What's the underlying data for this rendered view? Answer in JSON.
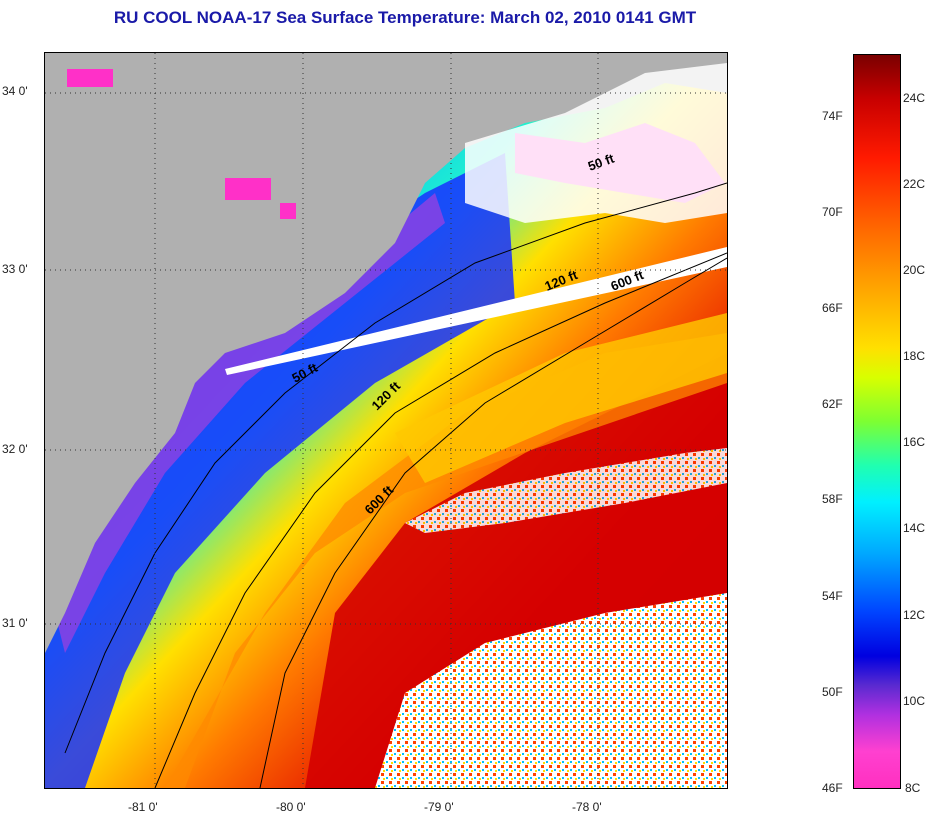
{
  "title": "RU COOL  NOAA-17  Sea Surface Temperature:  March 02, 2010 0141 GMT",
  "map": {
    "lat_labels": [
      "34 0'",
      "33 0'",
      "32 0'",
      "31 0'"
    ],
    "lon_labels": [
      "-81 0'",
      "-80 0'",
      "-79 0'",
      "-78 0'"
    ],
    "isobath_labels": [
      "50 ft",
      "120 ft",
      "600 ft",
      "50 ft",
      "120 ft",
      "600 ft"
    ],
    "land_color": "#b0b0b0",
    "cloud_color": "#ffffff"
  },
  "colorbar": {
    "fahrenheit_labels": [
      "74F",
      "70F",
      "66F",
      "62F",
      "58F",
      "54F",
      "50F",
      "46F"
    ],
    "celsius_labels": [
      "24C",
      "22C",
      "20C",
      "18C",
      "16C",
      "14C",
      "12C",
      "10C",
      "8C"
    ],
    "range_f": [
      46,
      76
    ],
    "range_c": [
      8,
      25
    ]
  }
}
